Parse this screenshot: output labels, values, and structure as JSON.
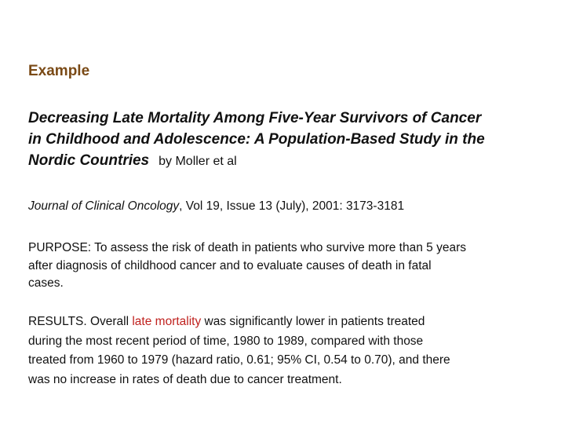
{
  "heading": "Example",
  "title": {
    "lines": [
      "Decreasing Late Mortality Among Five-Year Survivors of Cancer",
      "in Childhood and Adolescence: A Population-Based Study in the",
      "Nordic Countries"
    ],
    "byline": "by Moller et al"
  },
  "citation": {
    "journal": "Journal of Clinical Oncology",
    "details": ", Vol 19, Issue 13 (July), 2001: 3173-3181"
  },
  "purpose": {
    "lines": [
      "PURPOSE: To assess the risk of death in patients who survive more than 5 years",
      "after diagnosis of childhood cancer and to evaluate causes of death in fatal",
      "cases."
    ]
  },
  "results": {
    "line1_before": "RESULTS. Overall ",
    "line1_highlight": "late mortality",
    "line1_after": " was significantly lower in patients treated",
    "lines_rest": [
      "during the most recent period of time, 1980 to 1989, compared with those",
      "treated from 1960 to 1979 (hazard ratio, 0.61; 95% CI, 0.54 to 0.70), and there",
      "was no increase in rates of death due to cancer treatment."
    ]
  },
  "colors": {
    "heading": "#7a4a16",
    "highlight": "#c0221f",
    "text": "#111111"
  }
}
